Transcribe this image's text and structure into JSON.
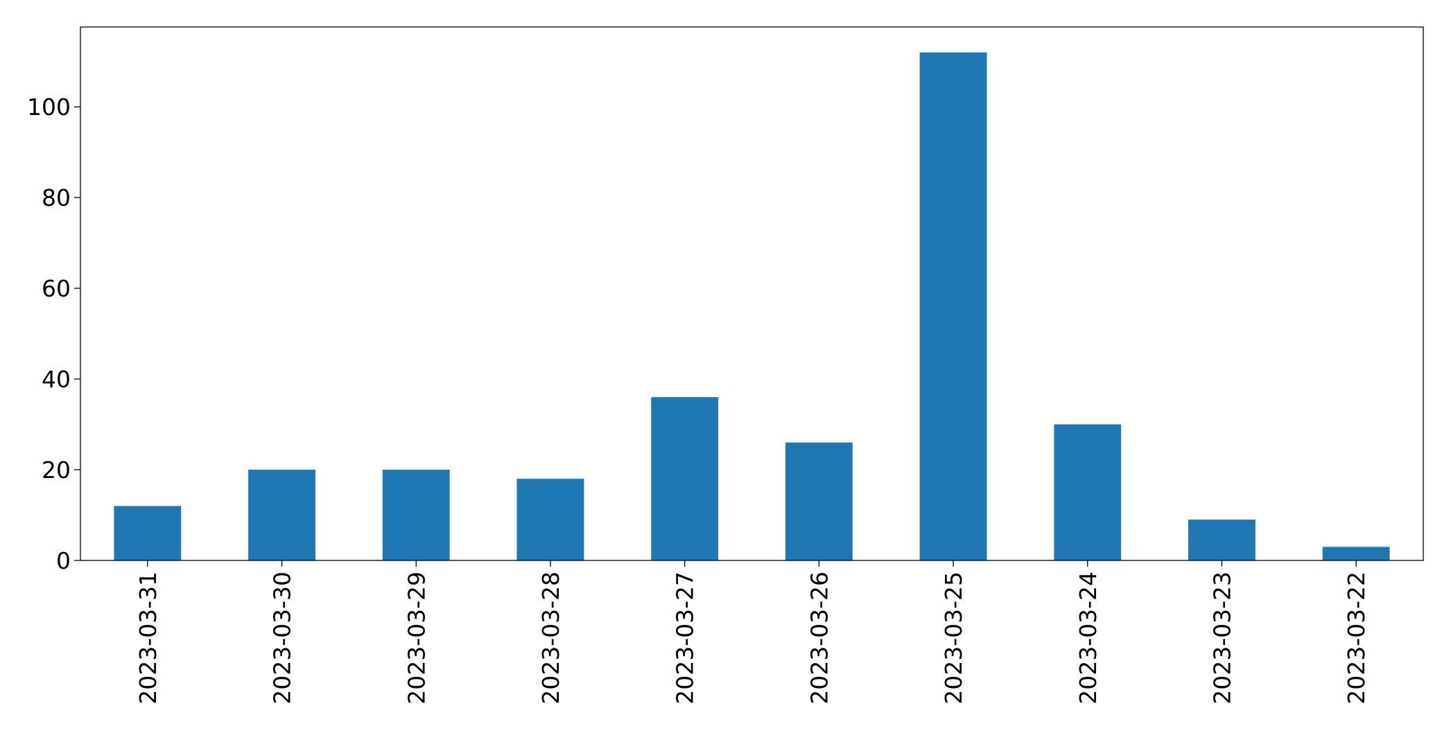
{
  "chart_data": {
    "type": "bar",
    "categories": [
      "2023-03-31",
      "2023-03-30",
      "2023-03-29",
      "2023-03-28",
      "2023-03-27",
      "2023-03-26",
      "2023-03-25",
      "2023-03-24",
      "2023-03-23",
      "2023-03-22"
    ],
    "values": [
      12,
      20,
      20,
      18,
      36,
      26,
      112,
      30,
      9,
      3
    ],
    "color": "#1f77b4",
    "ylim": [
      0,
      117.6
    ],
    "yticks": [
      0,
      20,
      40,
      60,
      80,
      100
    ],
    "grid": false
  }
}
